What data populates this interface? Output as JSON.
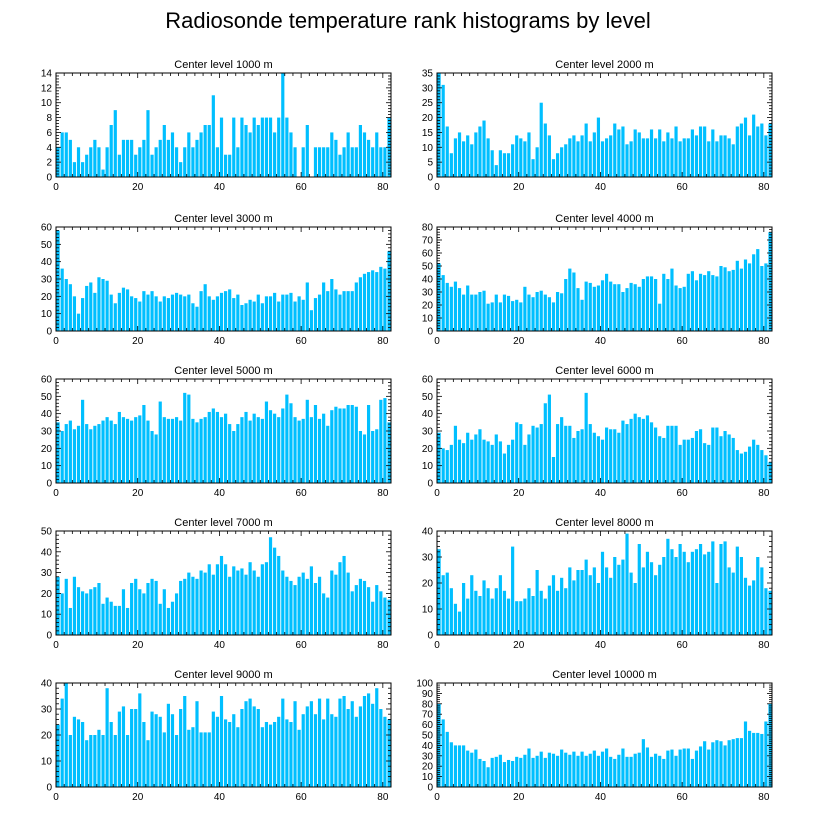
{
  "title": "Radiosonde temperature rank histograms by level",
  "colors": {
    "bar": "#00bfff",
    "axis": "#000000"
  },
  "chart_data": [
    {
      "type": "bar",
      "title": "Center level 1000 m",
      "xlim": [
        0,
        82
      ],
      "ylim": [
        0,
        14
      ],
      "xticks": [
        0,
        20,
        40,
        60,
        80
      ],
      "yticks": [
        0,
        2,
        4,
        6,
        8,
        10,
        12,
        14
      ],
      "x_start": 0,
      "values": [
        4,
        6,
        6,
        5,
        2,
        4,
        2,
        3,
        4,
        5,
        4,
        1,
        4,
        7,
        9,
        3,
        5,
        5,
        5,
        3,
        4,
        5,
        9,
        3,
        4,
        5,
        7,
        5,
        6,
        4,
        2,
        4,
        6,
        4,
        5,
        6,
        7,
        7,
        11,
        4,
        8,
        3,
        3,
        8,
        4,
        8,
        7,
        6,
        8,
        7,
        8,
        8,
        8,
        6,
        8,
        14,
        8,
        6,
        4,
        0,
        4,
        7,
        0,
        4,
        4,
        4,
        4,
        6,
        5,
        3,
        4,
        6,
        4,
        4,
        7,
        6,
        5,
        4,
        6,
        4,
        4,
        8
      ]
    },
    {
      "type": "bar",
      "title": "Center level 2000 m",
      "xlim": [
        0,
        82
      ],
      "ylim": [
        0,
        35
      ],
      "xticks": [
        0,
        20,
        40,
        60,
        80
      ],
      "yticks": [
        0,
        5,
        10,
        15,
        20,
        25,
        30,
        35
      ],
      "x_start": 0,
      "values": [
        35,
        31,
        17,
        8,
        13,
        15,
        12,
        14,
        11,
        15,
        17,
        19,
        13,
        9,
        4,
        9,
        8,
        8,
        11,
        14,
        13,
        12,
        15,
        6,
        10,
        25,
        18,
        14,
        6,
        8,
        10,
        11,
        13,
        14,
        12,
        14,
        18,
        12,
        15,
        20,
        12,
        13,
        14,
        18,
        16,
        17,
        11,
        12,
        16,
        15,
        13,
        13,
        16,
        13,
        16,
        12,
        15,
        13,
        17,
        12,
        13,
        13,
        16,
        14,
        17,
        17,
        12,
        16,
        12,
        14,
        14,
        13,
        11,
        17,
        18,
        20,
        14,
        21,
        17,
        18,
        14,
        18
      ]
    },
    {
      "type": "bar",
      "title": "Center level 3000 m",
      "xlim": [
        0,
        82
      ],
      "ylim": [
        0,
        60
      ],
      "xticks": [
        0,
        20,
        40,
        60,
        80
      ],
      "yticks": [
        0,
        10,
        20,
        30,
        40,
        50,
        60
      ],
      "x_start": 0,
      "values": [
        58,
        36,
        30,
        27,
        20,
        10,
        19,
        26,
        28,
        22,
        31,
        30,
        29,
        21,
        16,
        22,
        25,
        24,
        20,
        19,
        17,
        23,
        21,
        23,
        20,
        17,
        20,
        19,
        21,
        22,
        21,
        20,
        21,
        16,
        14,
        23,
        27,
        20,
        18,
        20,
        22,
        23,
        24,
        19,
        21,
        15,
        16,
        18,
        17,
        21,
        16,
        20,
        20,
        22,
        17,
        21,
        21,
        22,
        17,
        20,
        18,
        28,
        12,
        19,
        21,
        28,
        23,
        30,
        24,
        21,
        23,
        23,
        23,
        28,
        31,
        33,
        34,
        35,
        34,
        37,
        36,
        46
      ]
    },
    {
      "type": "bar",
      "title": "Center level 4000 m",
      "xlim": [
        0,
        82
      ],
      "ylim": [
        0,
        80
      ],
      "xticks": [
        0,
        20,
        40,
        60,
        80
      ],
      "yticks": [
        0,
        10,
        20,
        30,
        40,
        50,
        60,
        70,
        80
      ],
      "x_start": 0,
      "values": [
        52,
        43,
        37,
        34,
        38,
        33,
        28,
        35,
        28,
        28,
        30,
        31,
        21,
        22,
        28,
        22,
        28,
        27,
        23,
        24,
        22,
        34,
        28,
        26,
        30,
        31,
        28,
        26,
        22,
        30,
        29,
        40,
        48,
        45,
        33,
        24,
        38,
        37,
        34,
        35,
        39,
        44,
        38,
        36,
        36,
        30,
        33,
        37,
        36,
        34,
        40,
        42,
        42,
        40,
        21,
        44,
        40,
        48,
        35,
        33,
        34,
        44,
        46,
        39,
        44,
        43,
        46,
        43,
        42,
        50,
        49,
        46,
        47,
        54,
        48,
        55,
        52,
        59,
        63,
        50,
        52,
        76
      ]
    },
    {
      "type": "bar",
      "title": "Center level 5000 m",
      "xlim": [
        0,
        82
      ],
      "ylim": [
        0,
        60
      ],
      "xticks": [
        0,
        20,
        40,
        60,
        80
      ],
      "yticks": [
        0,
        10,
        20,
        30,
        40,
        50,
        60
      ],
      "x_start": 0,
      "values": [
        35,
        30,
        34,
        36,
        31,
        33,
        48,
        34,
        31,
        33,
        34,
        36,
        38,
        36,
        34,
        41,
        38,
        37,
        36,
        38,
        39,
        45,
        36,
        30,
        28,
        47,
        38,
        37,
        37,
        38,
        36,
        52,
        51,
        37,
        35,
        37,
        38,
        41,
        43,
        41,
        38,
        40,
        34,
        30,
        34,
        38,
        41,
        36,
        40,
        38,
        37,
        47,
        42,
        40,
        38,
        43,
        51,
        46,
        38,
        36,
        37,
        48,
        38,
        45,
        37,
        40,
        33,
        42,
        44,
        43,
        43,
        45,
        45,
        44,
        30,
        28,
        45,
        30,
        31,
        48,
        49,
        35
      ]
    },
    {
      "type": "bar",
      "title": "Center level 6000 m",
      "xlim": [
        0,
        82
      ],
      "ylim": [
        0,
        60
      ],
      "xticks": [
        0,
        20,
        40,
        60,
        80
      ],
      "yticks": [
        0,
        10,
        20,
        30,
        40,
        50,
        60
      ],
      "x_start": 0,
      "values": [
        29,
        20,
        19,
        22,
        33,
        25,
        23,
        29,
        25,
        28,
        31,
        25,
        24,
        22,
        28,
        24,
        17,
        22,
        25,
        35,
        34,
        22,
        28,
        33,
        32,
        34,
        46,
        51,
        15,
        34,
        38,
        33,
        33,
        26,
        30,
        31,
        52,
        34,
        29,
        27,
        25,
        32,
        31,
        31,
        29,
        36,
        34,
        37,
        40,
        38,
        37,
        39,
        35,
        32,
        27,
        26,
        33,
        33,
        33,
        22,
        25,
        25,
        26,
        30,
        31,
        23,
        22,
        32,
        32,
        27,
        30,
        28,
        26,
        19,
        17,
        18,
        21,
        25,
        22,
        19,
        16,
        12
      ]
    },
    {
      "type": "bar",
      "title": "Center level 7000 m",
      "xlim": [
        0,
        82
      ],
      "ylim": [
        0,
        50
      ],
      "xticks": [
        0,
        20,
        40,
        60,
        80
      ],
      "yticks": [
        0,
        10,
        20,
        30,
        40,
        50
      ],
      "x_start": 0,
      "values": [
        28,
        20,
        27,
        13,
        28,
        23,
        21,
        20,
        22,
        23,
        25,
        15,
        18,
        16,
        14,
        14,
        22,
        13,
        25,
        27,
        22,
        20,
        25,
        27,
        26,
        15,
        22,
        13,
        16,
        20,
        26,
        27,
        30,
        28,
        27,
        31,
        30,
        34,
        29,
        34,
        38,
        34,
        28,
        33,
        31,
        32,
        29,
        35,
        31,
        28,
        34,
        35,
        47,
        42,
        38,
        31,
        28,
        26,
        24,
        28,
        30,
        27,
        33,
        25,
        28,
        20,
        18,
        31,
        29,
        35,
        38,
        30,
        21,
        24,
        27,
        26,
        23,
        16,
        24,
        21,
        18,
        17
      ]
    },
    {
      "type": "bar",
      "title": "Center level 8000 m",
      "xlim": [
        0,
        82
      ],
      "ylim": [
        0,
        40
      ],
      "xticks": [
        0,
        20,
        40,
        60,
        80
      ],
      "yticks": [
        0,
        10,
        20,
        30,
        40
      ],
      "x_start": 0,
      "values": [
        33,
        23,
        24,
        18,
        12,
        9,
        20,
        14,
        23,
        17,
        15,
        21,
        18,
        14,
        18,
        23,
        17,
        14,
        34,
        13,
        13,
        14,
        18,
        15,
        25,
        17,
        14,
        19,
        23,
        17,
        22,
        18,
        26,
        21,
        25,
        25,
        29,
        23,
        26,
        20,
        32,
        26,
        22,
        30,
        27,
        29,
        39,
        24,
        20,
        35,
        26,
        32,
        28,
        23,
        27,
        30,
        37,
        33,
        30,
        35,
        32,
        28,
        32,
        33,
        35,
        31,
        32,
        36,
        20,
        35,
        36,
        26,
        24,
        34,
        30,
        22,
        19,
        21,
        30,
        26,
        18,
        17
      ]
    },
    {
      "type": "bar",
      "title": "Center level 9000 m",
      "xlim": [
        0,
        82
      ],
      "ylim": [
        0,
        40
      ],
      "xticks": [
        0,
        20,
        40,
        60,
        80
      ],
      "yticks": [
        0,
        10,
        20,
        30,
        40
      ],
      "x_start": 0,
      "values": [
        24,
        34,
        40,
        20,
        27,
        26,
        25,
        18,
        20,
        20,
        22,
        20,
        38,
        25,
        20,
        29,
        31,
        20,
        30,
        30,
        36,
        25,
        18,
        29,
        28,
        27,
        21,
        32,
        28,
        20,
        30,
        35,
        22,
        23,
        33,
        21,
        21,
        21,
        29,
        27,
        35,
        26,
        25,
        28,
        23,
        30,
        33,
        34,
        31,
        30,
        23,
        25,
        24,
        25,
        27,
        34,
        26,
        25,
        33,
        22,
        28,
        31,
        33,
        28,
        34,
        26,
        34,
        28,
        27,
        34,
        35,
        30,
        33,
        27,
        31,
        35,
        36,
        32,
        38,
        30,
        27,
        26
      ]
    },
    {
      "type": "bar",
      "title": "Center level 10000 m",
      "xlim": [
        0,
        82
      ],
      "ylim": [
        0,
        100
      ],
      "xticks": [
        0,
        20,
        40,
        60,
        80
      ],
      "yticks": [
        0,
        10,
        20,
        30,
        40,
        50,
        60,
        70,
        80,
        90,
        100
      ],
      "x_start": 0,
      "values": [
        80,
        65,
        53,
        43,
        40,
        40,
        40,
        35,
        33,
        36,
        27,
        25,
        19,
        28,
        29,
        31,
        24,
        26,
        25,
        29,
        28,
        31,
        37,
        28,
        30,
        34,
        28,
        33,
        32,
        30,
        36,
        33,
        31,
        34,
        30,
        34,
        30,
        32,
        35,
        30,
        34,
        37,
        29,
        27,
        31,
        37,
        29,
        29,
        32,
        33,
        46,
        38,
        29,
        32,
        30,
        27,
        35,
        36,
        30,
        36,
        37,
        37,
        27,
        35,
        39,
        44,
        36,
        43,
        45,
        44,
        40,
        45,
        46,
        47,
        47,
        63,
        54,
        52,
        52,
        51,
        63,
        80
      ]
    }
  ]
}
